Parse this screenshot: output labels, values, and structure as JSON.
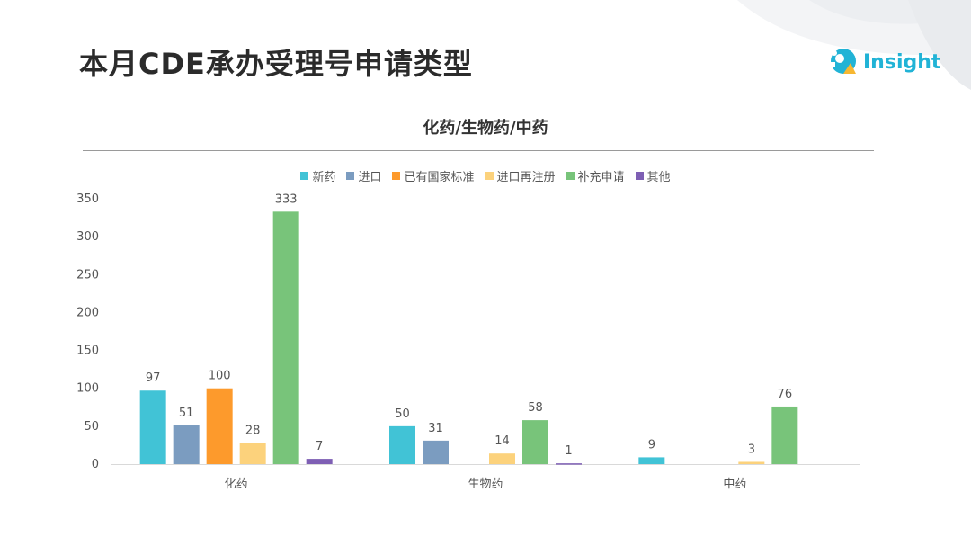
{
  "page": {
    "title": "本月CDE承办受理号申请类型",
    "logo_text": "Insight"
  },
  "colors": {
    "title": "#2b2b2b",
    "logo": "#21b3d6"
  },
  "chart_data": {
    "type": "bar",
    "title": "化药/生物药/中药",
    "categories": [
      "化药",
      "生物药",
      "中药"
    ],
    "series": [
      {
        "name": "新药",
        "color": "#41c3d6",
        "values": [
          97,
          50,
          9
        ]
      },
      {
        "name": "进口",
        "color": "#7b9cc0",
        "values": [
          51,
          31,
          0
        ]
      },
      {
        "name": "已有国家标准",
        "color": "#fd9a2c",
        "values": [
          100,
          0,
          0
        ]
      },
      {
        "name": "进口再注册",
        "color": "#fcd27c",
        "values": [
          28,
          14,
          3
        ]
      },
      {
        "name": "补充申请",
        "color": "#78c47a",
        "values": [
          333,
          58,
          76
        ]
      },
      {
        "name": "其他",
        "color": "#7e5fb4",
        "values": [
          7,
          1,
          0
        ]
      }
    ],
    "ylim": [
      0,
      350
    ],
    "yticks": [
      0,
      50,
      100,
      150,
      200,
      250,
      300,
      350
    ],
    "grid": false,
    "legend_position": "top"
  }
}
